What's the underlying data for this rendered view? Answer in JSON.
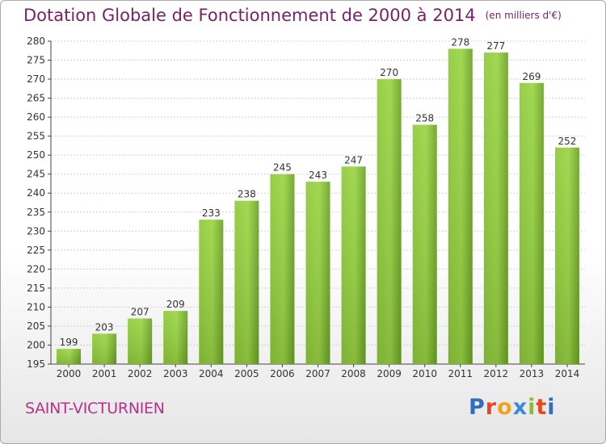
{
  "title": "Dotation Globale de Fonctionnement de 2000 à 2014",
  "unit_note": "(en milliers d'€)",
  "city": "SAINT-VICTURNIEN",
  "logo": {
    "text": "Proxiti",
    "letter_colors": [
      "#2f6ec0",
      "#e8471d",
      "#f0a321",
      "#3a8ad8",
      "#8cbc32",
      "#e8471d",
      "#2f6ec0"
    ]
  },
  "chart_data": {
    "type": "bar",
    "title": "Dotation Globale de Fonctionnement de 2000 à 2014",
    "categories": [
      "2000",
      "2001",
      "2002",
      "2003",
      "2004",
      "2005",
      "2006",
      "2007",
      "2008",
      "2009",
      "2010",
      "2011",
      "2012",
      "2013",
      "2014"
    ],
    "values": [
      199,
      203,
      207,
      209,
      233,
      238,
      245,
      243,
      247,
      270,
      258,
      278,
      277,
      269,
      252
    ],
    "ylim": [
      195,
      280
    ],
    "yticks": [
      195,
      200,
      205,
      210,
      215,
      220,
      225,
      230,
      235,
      240,
      245,
      250,
      255,
      260,
      265,
      270,
      275,
      280
    ],
    "grid": true,
    "bar_color": "#7cb82f",
    "xlabel": "",
    "ylabel": ""
  }
}
